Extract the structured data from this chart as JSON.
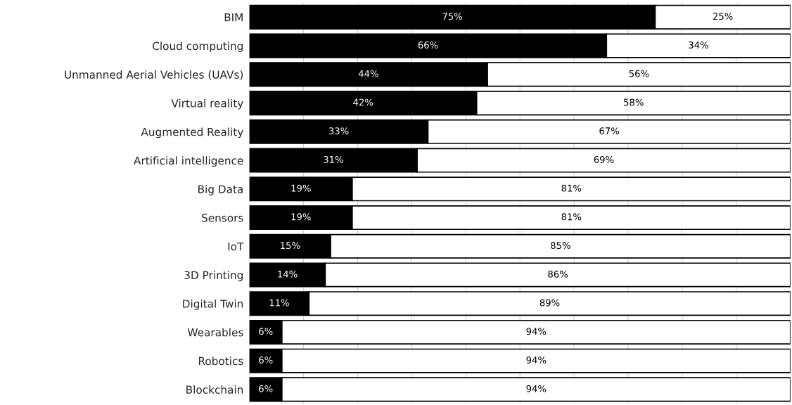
{
  "chart_data": {
    "type": "bar",
    "orientation": "horizontal",
    "stacked": true,
    "categories": [
      "BIM",
      "Cloud computing",
      "Unmanned Aerial Vehicles (UAVs)",
      "Virtual reality",
      "Augmented Reality",
      "Artificial intelligence",
      "Big Data",
      "Sensors",
      "IoT",
      "3D Printing",
      "Digital Twin",
      "Wearables",
      "Robotics",
      "Blockchain"
    ],
    "series": [
      {
        "color": "#000000",
        "values": [
          75,
          66,
          44,
          42,
          33,
          31,
          19,
          19,
          15,
          14,
          11,
          6,
          6,
          6
        ],
        "value_labels": [
          "75%",
          "66%",
          "44%",
          "42%",
          "33%",
          "31%",
          "19%",
          "19%",
          "15%",
          "14%",
          "11%",
          "6%",
          "6%",
          "6%"
        ]
      },
      {
        "color": "#ffffff",
        "values": [
          25,
          34,
          56,
          58,
          67,
          69,
          81,
          81,
          85,
          86,
          89,
          94,
          94,
          94
        ],
        "value_labels": [
          "25%",
          "34%",
          "56%",
          "58%",
          "67%",
          "69%",
          "81%",
          "81%",
          "85%",
          "86%",
          "89%",
          "94%",
          "94%",
          "94%"
        ]
      }
    ],
    "xlim": [
      0,
      100
    ],
    "xticks": [
      {
        "value": 0,
        "label": null
      },
      {
        "value": 10,
        "label": null
      },
      {
        "value": 20,
        "label": null
      },
      {
        "value": 30,
        "label": null
      },
      {
        "value": 40,
        "label": null
      },
      {
        "value": 50,
        "label": null
      },
      {
        "value": 60,
        "label": null
      },
      {
        "value": 70,
        "label": null
      },
      {
        "value": 80,
        "label": null
      },
      {
        "value": 90,
        "label": null
      },
      {
        "value": 100,
        "label": null
      }
    ],
    "tick_labels": "y",
    "grid": "x",
    "legend": false
  }
}
